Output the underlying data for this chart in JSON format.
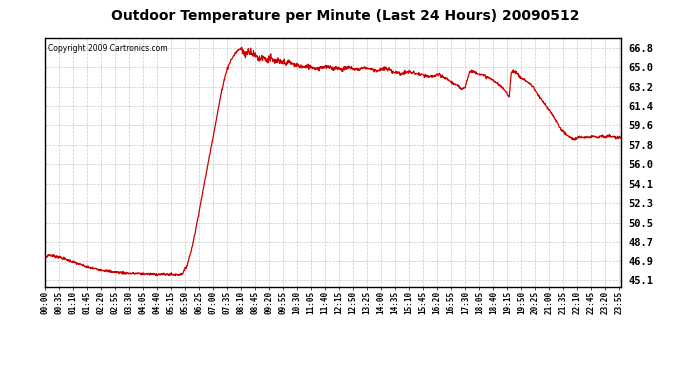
{
  "title": "Outdoor Temperature per Minute (Last 24 Hours) 20090512",
  "copyright": "Copyright 2009 Cartronics.com",
  "line_color": "#cc0000",
  "bg_color": "#ffffff",
  "plot_bg_color": "#ffffff",
  "grid_color": "#bbbbbb",
  "yticks": [
    45.1,
    46.9,
    48.7,
    50.5,
    52.3,
    54.1,
    56.0,
    57.8,
    59.6,
    61.4,
    63.2,
    65.0,
    66.8
  ],
  "ymin": 44.5,
  "ymax": 67.8,
  "xtick_labels": [
    "00:00",
    "00:35",
    "01:10",
    "01:45",
    "02:20",
    "02:55",
    "03:30",
    "04:05",
    "04:40",
    "05:15",
    "05:50",
    "06:25",
    "07:00",
    "07:35",
    "08:10",
    "08:45",
    "09:20",
    "09:55",
    "10:30",
    "11:05",
    "11:40",
    "12:15",
    "12:50",
    "13:25",
    "14:00",
    "14:35",
    "15:10",
    "15:45",
    "16:20",
    "16:55",
    "17:30",
    "18:05",
    "18:40",
    "19:15",
    "19:50",
    "20:25",
    "21:00",
    "21:35",
    "22:10",
    "22:45",
    "23:20",
    "23:55"
  ],
  "key_points": [
    [
      0,
      47.2
    ],
    [
      10,
      47.5
    ],
    [
      20,
      47.4
    ],
    [
      35,
      47.3
    ],
    [
      50,
      47.1
    ],
    [
      65,
      46.9
    ],
    [
      80,
      46.7
    ],
    [
      95,
      46.5
    ],
    [
      110,
      46.3
    ],
    [
      125,
      46.2
    ],
    [
      140,
      46.1
    ],
    [
      155,
      46.0
    ],
    [
      170,
      45.9
    ],
    [
      185,
      45.85
    ],
    [
      200,
      45.8
    ],
    [
      215,
      45.75
    ],
    [
      230,
      45.75
    ],
    [
      245,
      45.72
    ],
    [
      260,
      45.7
    ],
    [
      275,
      45.68
    ],
    [
      290,
      45.67
    ],
    [
      305,
      45.67
    ],
    [
      315,
      45.65
    ],
    [
      325,
      45.65
    ],
    [
      335,
      45.65
    ],
    [
      340,
      45.67
    ],
    [
      345,
      45.8
    ],
    [
      355,
      46.5
    ],
    [
      365,
      47.8
    ],
    [
      375,
      49.5
    ],
    [
      385,
      51.5
    ],
    [
      395,
      53.5
    ],
    [
      405,
      55.5
    ],
    [
      415,
      57.5
    ],
    [
      420,
      58.5
    ],
    [
      425,
      59.5
    ],
    [
      430,
      60.5
    ],
    [
      435,
      61.5
    ],
    [
      440,
      62.5
    ],
    [
      445,
      63.3
    ],
    [
      450,
      64.2
    ],
    [
      455,
      64.8
    ],
    [
      460,
      65.3
    ],
    [
      465,
      65.7
    ],
    [
      470,
      66.0
    ],
    [
      475,
      66.3
    ],
    [
      480,
      66.5
    ],
    [
      485,
      66.7
    ],
    [
      490,
      66.8
    ],
    [
      495,
      66.5
    ],
    [
      500,
      66.2
    ],
    [
      505,
      66.4
    ],
    [
      510,
      66.6
    ],
    [
      515,
      66.5
    ],
    [
      520,
      66.3
    ],
    [
      525,
      66.1
    ],
    [
      530,
      66.0
    ],
    [
      535,
      65.8
    ],
    [
      540,
      65.9
    ],
    [
      545,
      66.0
    ],
    [
      550,
      65.8
    ],
    [
      555,
      65.7
    ],
    [
      560,
      65.9
    ],
    [
      565,
      65.8
    ],
    [
      570,
      65.6
    ],
    [
      575,
      65.5
    ],
    [
      580,
      65.6
    ],
    [
      585,
      65.5
    ],
    [
      590,
      65.4
    ],
    [
      595,
      65.5
    ],
    [
      600,
      65.4
    ],
    [
      610,
      65.5
    ],
    [
      620,
      65.3
    ],
    [
      630,
      65.2
    ],
    [
      640,
      65.1
    ],
    [
      650,
      65.0
    ],
    [
      660,
      65.1
    ],
    [
      670,
      65.0
    ],
    [
      680,
      64.9
    ],
    [
      690,
      65.0
    ],
    [
      700,
      65.1
    ],
    [
      710,
      65.0
    ],
    [
      720,
      64.9
    ],
    [
      730,
      65.0
    ],
    [
      740,
      64.8
    ],
    [
      750,
      64.9
    ],
    [
      760,
      65.0
    ],
    [
      770,
      64.9
    ],
    [
      780,
      64.8
    ],
    [
      790,
      64.9
    ],
    [
      800,
      65.0
    ],
    [
      810,
      64.9
    ],
    [
      820,
      64.8
    ],
    [
      830,
      64.7
    ],
    [
      840,
      64.8
    ],
    [
      850,
      64.9
    ],
    [
      860,
      64.8
    ],
    [
      870,
      64.6
    ],
    [
      880,
      64.5
    ],
    [
      890,
      64.4
    ],
    [
      900,
      64.5
    ],
    [
      910,
      64.6
    ],
    [
      920,
      64.5
    ],
    [
      930,
      64.4
    ],
    [
      940,
      64.3
    ],
    [
      950,
      64.2
    ],
    [
      960,
      64.1
    ],
    [
      970,
      64.2
    ],
    [
      980,
      64.3
    ],
    [
      990,
      64.2
    ],
    [
      1000,
      64.0
    ],
    [
      1010,
      63.8
    ],
    [
      1020,
      63.5
    ],
    [
      1030,
      63.3
    ],
    [
      1040,
      63.0
    ],
    [
      1050,
      63.2
    ],
    [
      1060,
      64.5
    ],
    [
      1065,
      64.7
    ],
    [
      1070,
      64.6
    ],
    [
      1080,
      64.5
    ],
    [
      1090,
      64.3
    ],
    [
      1100,
      64.2
    ],
    [
      1110,
      64.0
    ],
    [
      1120,
      63.8
    ],
    [
      1130,
      63.5
    ],
    [
      1140,
      63.2
    ],
    [
      1150,
      62.8
    ],
    [
      1160,
      62.3
    ],
    [
      1165,
      64.5
    ],
    [
      1170,
      64.7
    ],
    [
      1175,
      64.6
    ],
    [
      1180,
      64.4
    ],
    [
      1185,
      64.2
    ],
    [
      1190,
      64.0
    ],
    [
      1200,
      63.8
    ],
    [
      1210,
      63.5
    ],
    [
      1220,
      63.2
    ],
    [
      1230,
      62.5
    ],
    [
      1240,
      62.0
    ],
    [
      1250,
      61.5
    ],
    [
      1260,
      61.0
    ],
    [
      1270,
      60.5
    ],
    [
      1280,
      59.8
    ],
    [
      1290,
      59.2
    ],
    [
      1300,
      58.8
    ],
    [
      1310,
      58.5
    ],
    [
      1320,
      58.3
    ],
    [
      1330,
      58.4
    ],
    [
      1335,
      58.5
    ],
    [
      1340,
      58.5
    ],
    [
      1345,
      58.4
    ],
    [
      1350,
      58.5
    ],
    [
      1360,
      58.5
    ],
    [
      1370,
      58.6
    ],
    [
      1380,
      58.5
    ],
    [
      1390,
      58.6
    ],
    [
      1400,
      58.5
    ],
    [
      1410,
      58.6
    ],
    [
      1420,
      58.5
    ],
    [
      1430,
      58.4
    ],
    [
      1439,
      58.5
    ]
  ]
}
